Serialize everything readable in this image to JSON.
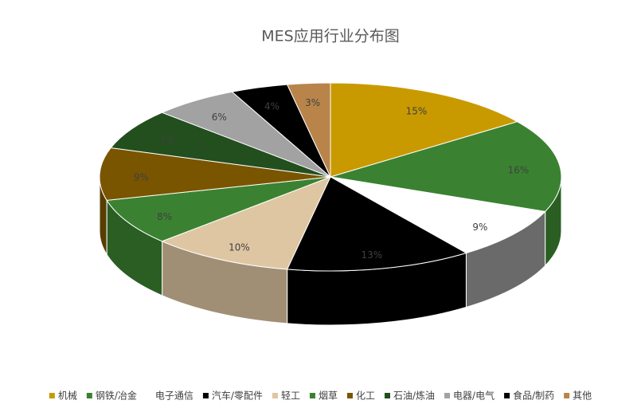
{
  "chart_data": {
    "type": "pie3d",
    "title": "MES应用行业分布图",
    "categories": [
      "机械",
      "钢铁/冶金",
      "电子通信",
      "汽车/零配件",
      "轻工",
      "烟草",
      "化工",
      "石油/炼油",
      "电器/电气",
      "食品/制药",
      "其他"
    ],
    "values": [
      15,
      16,
      9,
      13,
      10,
      8,
      9,
      7,
      6,
      4,
      3
    ],
    "value_labels": [
      "15%",
      "16%",
      "9%",
      "13%",
      "10%",
      "8%",
      "9%",
      "7%",
      "6%",
      "4%",
      "3%"
    ],
    "colors": [
      "#c89a00",
      "#3a8231",
      "#ffffff",
      "#000000",
      "#dfc6a3",
      "#3a8231",
      "#7a5500",
      "#234f1e",
      "#a2a2a2",
      "#000000",
      "#b8844a"
    ]
  }
}
